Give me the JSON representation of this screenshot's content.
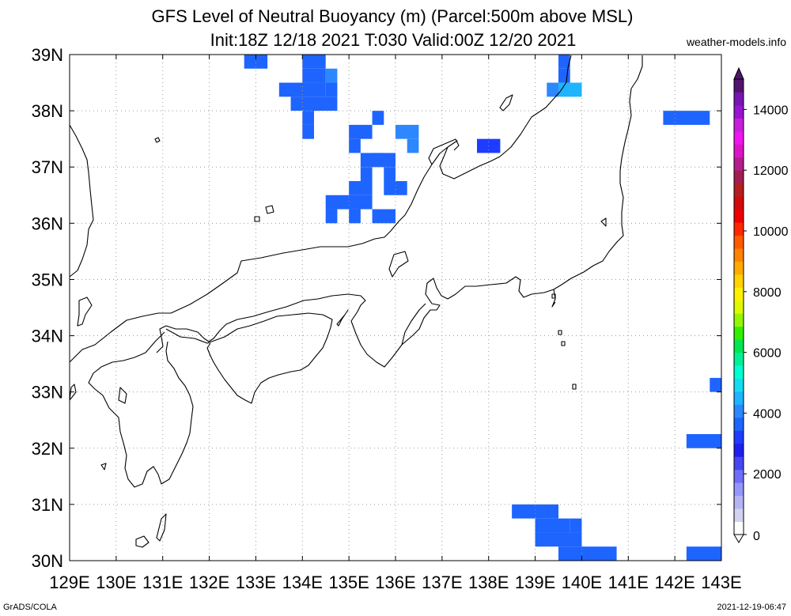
{
  "title_line1": "GFS Level of Neutral Buoyancy (m) (Parcel:500m above MSL)",
  "title_line2": "Init:18Z 12/18 2021 T:030 Valid:00Z 12/20 2021",
  "site": "weather-models.info",
  "credit": "GrADS/COLA",
  "timestamp": "2021-12-19-06:47",
  "map": {
    "lon_range": [
      129,
      143
    ],
    "lat_range": [
      30,
      39
    ],
    "lat_labels": [
      "39N",
      "38N",
      "37N",
      "36N",
      "35N",
      "34N",
      "33N",
      "32N",
      "31N",
      "30N"
    ],
    "lon_labels": [
      "129E",
      "130E",
      "131E",
      "132E",
      "133E",
      "134E",
      "135E",
      "136E",
      "137E",
      "138E",
      "139E",
      "140E",
      "141E",
      "142E",
      "143E"
    ],
    "grid": "dotted",
    "cell_deg": 0.25,
    "cells": [
      {
        "lon": 132.75,
        "lat": 38.75,
        "n": 2,
        "color": "#1e64ff"
      },
      {
        "lon": 134.0,
        "lat": 38.75,
        "n": 2,
        "color": "#1e64ff"
      },
      {
        "lon": 134.0,
        "lat": 38.5,
        "n": 2,
        "color": "#1e64ff"
      },
      {
        "lon": 134.5,
        "lat": 38.5,
        "n": 1,
        "color": "#2d87ff"
      },
      {
        "lon": 133.5,
        "lat": 38.25,
        "n": 4,
        "color": "#1e64ff"
      },
      {
        "lon": 134.5,
        "lat": 38.25,
        "n": 1,
        "color": "#1e64ff"
      },
      {
        "lon": 133.75,
        "lat": 38.0,
        "n": 4,
        "color": "#1e64ff"
      },
      {
        "lon": 134.0,
        "lat": 37.75,
        "n": 1,
        "color": "#1e64ff"
      },
      {
        "lon": 134.0,
        "lat": 37.5,
        "n": 1,
        "color": "#1e64ff"
      },
      {
        "lon": 135.0,
        "lat": 37.5,
        "n": 2,
        "color": "#1e64ff"
      },
      {
        "lon": 135.0,
        "lat": 37.25,
        "n": 1,
        "color": "#1e64ff"
      },
      {
        "lon": 135.5,
        "lat": 37.75,
        "n": 1,
        "color": "#1e64ff"
      },
      {
        "lon": 136.0,
        "lat": 37.5,
        "n": 2,
        "color": "#2d87ff"
      },
      {
        "lon": 136.25,
        "lat": 37.25,
        "n": 1,
        "color": "#2d87ff"
      },
      {
        "lon": 135.25,
        "lat": 37.0,
        "n": 2,
        "color": "#1e64ff"
      },
      {
        "lon": 135.5,
        "lat": 37.0,
        "n": 2,
        "color": "#1e64ff"
      },
      {
        "lon": 135.25,
        "lat": 36.75,
        "n": 1,
        "color": "#1e64ff"
      },
      {
        "lon": 135.75,
        "lat": 36.75,
        "n": 1,
        "color": "#1e64ff"
      },
      {
        "lon": 135.75,
        "lat": 36.5,
        "n": 2,
        "color": "#1e64ff"
      },
      {
        "lon": 135.0,
        "lat": 36.5,
        "n": 2,
        "color": "#1e64ff"
      },
      {
        "lon": 134.5,
        "lat": 36.25,
        "n": 4,
        "color": "#1e64ff"
      },
      {
        "lon": 134.5,
        "lat": 36.0,
        "n": 1,
        "color": "#1e64ff"
      },
      {
        "lon": 135.0,
        "lat": 36.0,
        "n": 1,
        "color": "#1e64ff"
      },
      {
        "lon": 135.5,
        "lat": 36.0,
        "n": 2,
        "color": "#1e64ff"
      },
      {
        "lon": 137.75,
        "lat": 37.25,
        "n": 2,
        "color": "#1e3cff"
      },
      {
        "lon": 139.5,
        "lat": 38.75,
        "n": 1,
        "color": "#1e64ff"
      },
      {
        "lon": 139.5,
        "lat": 38.5,
        "n": 1,
        "color": "#1e64ff"
      },
      {
        "lon": 139.25,
        "lat": 38.25,
        "n": 1,
        "color": "#2d87ff"
      },
      {
        "lon": 139.5,
        "lat": 38.25,
        "n": 2,
        "color": "#1eb4ff"
      },
      {
        "lon": 141.75,
        "lat": 37.75,
        "n": 4,
        "color": "#1e64ff"
      },
      {
        "lon": 142.75,
        "lat": 33.0,
        "n": 1,
        "color": "#1e64ff"
      },
      {
        "lon": 142.25,
        "lat": 32.0,
        "n": 3,
        "color": "#1e64ff"
      },
      {
        "lon": 138.5,
        "lat": 30.75,
        "n": 4,
        "color": "#1e64ff"
      },
      {
        "lon": 139.0,
        "lat": 30.5,
        "n": 3,
        "color": "#1e64ff"
      },
      {
        "lon": 139.75,
        "lat": 30.5,
        "n": 1,
        "color": "#1e64ff"
      },
      {
        "lon": 139.0,
        "lat": 30.25,
        "n": 4,
        "color": "#1e64ff"
      },
      {
        "lon": 139.5,
        "lat": 30.0,
        "n": 5,
        "color": "#1e64ff"
      },
      {
        "lon": 140.0,
        "lat": 29.75,
        "n": 3,
        "color": "#1e64ff"
      },
      {
        "lon": 141.5,
        "lat": 29.75,
        "n": 3,
        "color": "#1e64ff"
      },
      {
        "lon": 142.25,
        "lat": 30.0,
        "n": 3,
        "color": "#1e64ff"
      },
      {
        "lon": 142.75,
        "lat": 29.75,
        "n": 1,
        "color": "#1e64ff"
      }
    ]
  },
  "colorbar": {
    "labels": [
      "14000",
      "12000",
      "10000",
      "8000",
      "6000",
      "4000",
      "2000",
      "0"
    ],
    "values": [
      14000,
      12000,
      10000,
      8000,
      6000,
      4000,
      2000,
      0
    ],
    "range": [
      0,
      15000
    ],
    "colors": [
      "#ffffff",
      "#d2d2f0",
      "#b4b4f5",
      "#9696fa",
      "#6e6efa",
      "#4646f5",
      "#1e1ef0",
      "#1e3cff",
      "#1e64ff",
      "#2d87ff",
      "#1eb4ff",
      "#14dcf0",
      "#00ffd2",
      "#00f096",
      "#00e650",
      "#32f000",
      "#96f500",
      "#dcfa00",
      "#fff000",
      "#ffd200",
      "#ffaa00",
      "#ff8200",
      "#ff5a00",
      "#ff2800",
      "#f00000",
      "#d20a0a",
      "#b41e1e",
      "#a01e50",
      "#b41e8c",
      "#dc14c8",
      "#f014f0",
      "#c81edc",
      "#9614d2",
      "#7814b4",
      "#50146e"
    ]
  }
}
